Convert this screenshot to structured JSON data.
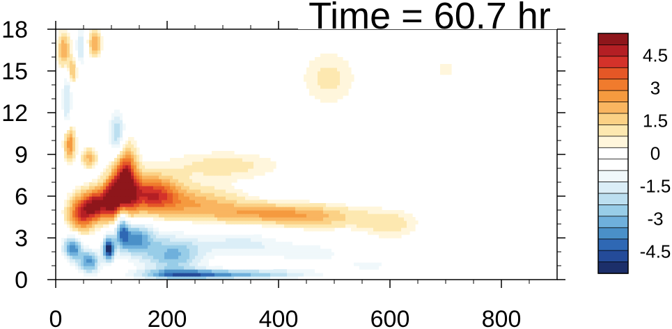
{
  "chart_data": {
    "type": "heatmap",
    "title": "Time = 60.7 hr",
    "xlabel": "",
    "ylabel": "",
    "xlim": [
      0,
      900
    ],
    "ylim": [
      0,
      18
    ],
    "x_ticks": [
      "0",
      "200",
      "400",
      "600",
      "800"
    ],
    "y_ticks": [
      "0",
      "3",
      "6",
      "9",
      "12",
      "15",
      "18"
    ],
    "colorbar": {
      "range": [
        -5.5,
        5.5
      ],
      "labels": [
        "4.5",
        "3",
        "1.5",
        "0",
        "-1.5",
        "-3",
        "-4.5"
      ],
      "colors": [
        "#1c2f6a",
        "#244b99",
        "#2f68b4",
        "#4a90c8",
        "#6fb0dc",
        "#98cde8",
        "#bcdff0",
        "#dbeef7",
        "#f0f8fb",
        "#ffffff",
        "#ffffff",
        "#fff6dc",
        "#fde8b0",
        "#fbd185",
        "#f9b560",
        "#f59a3f",
        "#f07b2d",
        "#e55726",
        "#d4322a",
        "#b41f24",
        "#8e161b"
      ]
    },
    "features": [
      {
        "x": 125,
        "y": 7.0,
        "value": 5.5,
        "sx": 14,
        "sy": 1.6
      },
      {
        "x": 100,
        "y": 5.8,
        "value": 5.0,
        "sx": 12,
        "sy": 1.0
      },
      {
        "x": 72,
        "y": 5.4,
        "value": 4.5,
        "sx": 14,
        "sy": 0.8
      },
      {
        "x": 45,
        "y": 4.8,
        "value": 4.0,
        "sx": 16,
        "sy": 0.9
      },
      {
        "x": 170,
        "y": 6.2,
        "value": 4.0,
        "sx": 35,
        "sy": 0.9
      },
      {
        "x": 250,
        "y": 5.5,
        "value": 2.0,
        "sx": 60,
        "sy": 0.8
      },
      {
        "x": 370,
        "y": 4.8,
        "value": 2.0,
        "sx": 70,
        "sy": 0.5
      },
      {
        "x": 470,
        "y": 4.5,
        "value": 1.5,
        "sx": 60,
        "sy": 0.6
      },
      {
        "x": 600,
        "y": 4.0,
        "value": 1.0,
        "sx": 40,
        "sy": 0.8
      },
      {
        "x": 25,
        "y": 9.8,
        "value": 3.0,
        "sx": 7,
        "sy": 0.8
      },
      {
        "x": 15,
        "y": 16.5,
        "value": 2.5,
        "sx": 8,
        "sy": 0.9
      },
      {
        "x": 70,
        "y": 17.0,
        "value": 2.5,
        "sx": 8,
        "sy": 0.6
      },
      {
        "x": 30,
        "y": 15.0,
        "value": 2.0,
        "sx": 6,
        "sy": 0.6
      },
      {
        "x": 60,
        "y": 8.8,
        "value": 2.0,
        "sx": 10,
        "sy": 0.5
      },
      {
        "x": 300,
        "y": 8.2,
        "value": 1.0,
        "sx": 80,
        "sy": 0.8
      },
      {
        "x": 490,
        "y": 14.5,
        "value": 0.9,
        "sx": 40,
        "sy": 1.6
      },
      {
        "x": 700,
        "y": 15.2,
        "value": 0.6,
        "sx": 20,
        "sy": 0.7
      },
      {
        "x": 95,
        "y": 2.2,
        "value": -5.0,
        "sx": 7,
        "sy": 0.6
      },
      {
        "x": 30,
        "y": 2.3,
        "value": -4.0,
        "sx": 12,
        "sy": 0.6
      },
      {
        "x": 60,
        "y": 1.3,
        "value": -3.5,
        "sx": 14,
        "sy": 0.6
      },
      {
        "x": 140,
        "y": 3.0,
        "value": -3.5,
        "sx": 25,
        "sy": 0.8
      },
      {
        "x": 210,
        "y": 1.8,
        "value": -3.0,
        "sx": 40,
        "sy": 1.0
      },
      {
        "x": 230,
        "y": 0.4,
        "value": -3.0,
        "sx": 60,
        "sy": 0.25
      },
      {
        "x": 350,
        "y": 0.4,
        "value": -2.5,
        "sx": 80,
        "sy": 0.25
      },
      {
        "x": 120,
        "y": 4.0,
        "value": -3.0,
        "sx": 8,
        "sy": 1.0
      },
      {
        "x": 110,
        "y": 10.5,
        "value": -2.5,
        "sx": 10,
        "sy": 1.2
      },
      {
        "x": 20,
        "y": 13.0,
        "value": -2.0,
        "sx": 6,
        "sy": 1.5
      },
      {
        "x": 45,
        "y": 16.8,
        "value": -2.0,
        "sx": 6,
        "sy": 1.0
      },
      {
        "x": 330,
        "y": 2.6,
        "value": -1.5,
        "sx": 50,
        "sy": 0.6
      },
      {
        "x": 450,
        "y": 2.0,
        "value": -1.0,
        "sx": 60,
        "sy": 0.6
      },
      {
        "x": 570,
        "y": 1.0,
        "value": -0.8,
        "sx": 60,
        "sy": 0.5
      },
      {
        "x": 760,
        "y": 9.3,
        "value": -0.8,
        "sx": 10,
        "sy": 0.4
      }
    ]
  }
}
